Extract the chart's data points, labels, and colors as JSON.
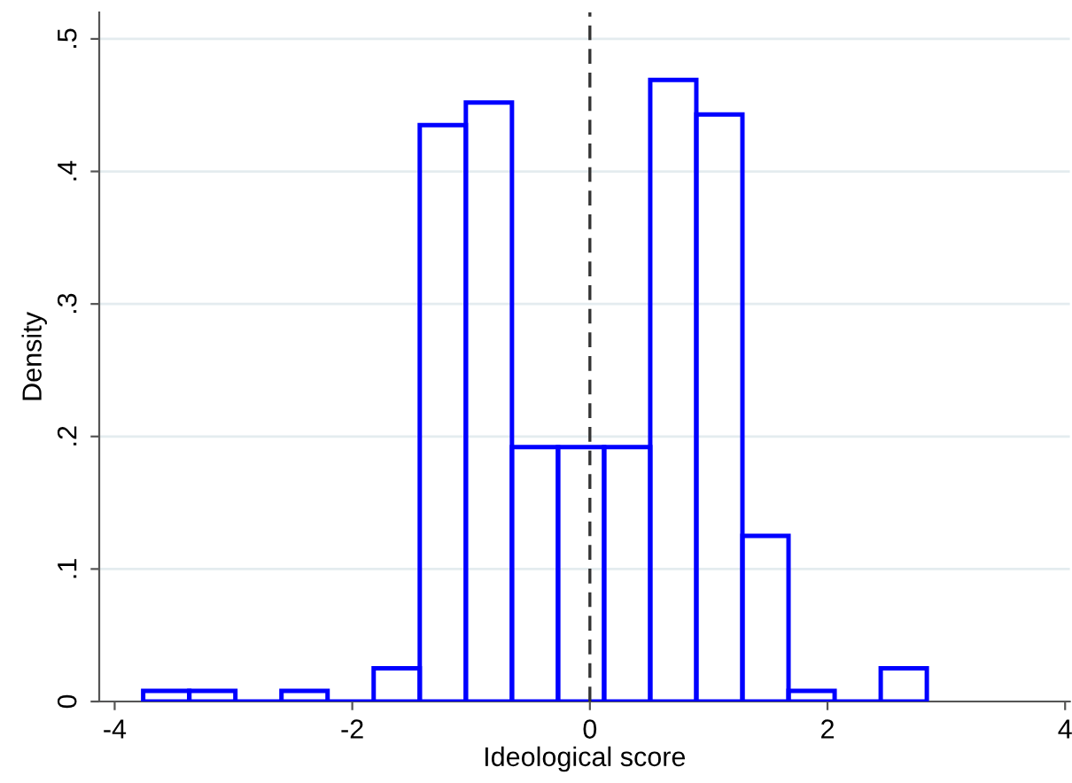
{
  "chart_data": {
    "type": "histogram",
    "xlabel": "Ideological score",
    "ylabel": "Density",
    "bins": [
      -3.76,
      -3.372,
      -2.984,
      -2.596,
      -2.208,
      -1.82,
      -1.432,
      -1.044,
      -0.656,
      -0.268,
      0.12,
      0.508,
      0.896,
      1.284,
      1.672,
      2.06,
      2.448,
      2.836
    ],
    "values": [
      0.008,
      0.008,
      0,
      0.008,
      0,
      0.025,
      0.435,
      0.452,
      0.192,
      0.192,
      0.192,
      0.469,
      0.443,
      0.125,
      0.008,
      0,
      0.025
    ],
    "color": "#0000ff",
    "xlim": [
      -4.13,
      4.04
    ],
    "xticks": [
      -4,
      -2,
      0,
      2,
      4
    ],
    "ylim": [
      0,
      0.52
    ],
    "yticks": [
      {
        "value": 0,
        "label": "0"
      },
      {
        "value": 0.1,
        "label": ".1"
      },
      {
        "value": 0.2,
        "label": ".2"
      },
      {
        "value": 0.3,
        "label": ".3"
      },
      {
        "value": 0.4,
        "label": ".4"
      },
      {
        "value": 0.5,
        "label": ".5"
      }
    ],
    "grid": "y",
    "ref_lines": [
      {
        "axis": "x",
        "value": 0,
        "color": "#333333",
        "line_style": "dashed"
      }
    ]
  }
}
